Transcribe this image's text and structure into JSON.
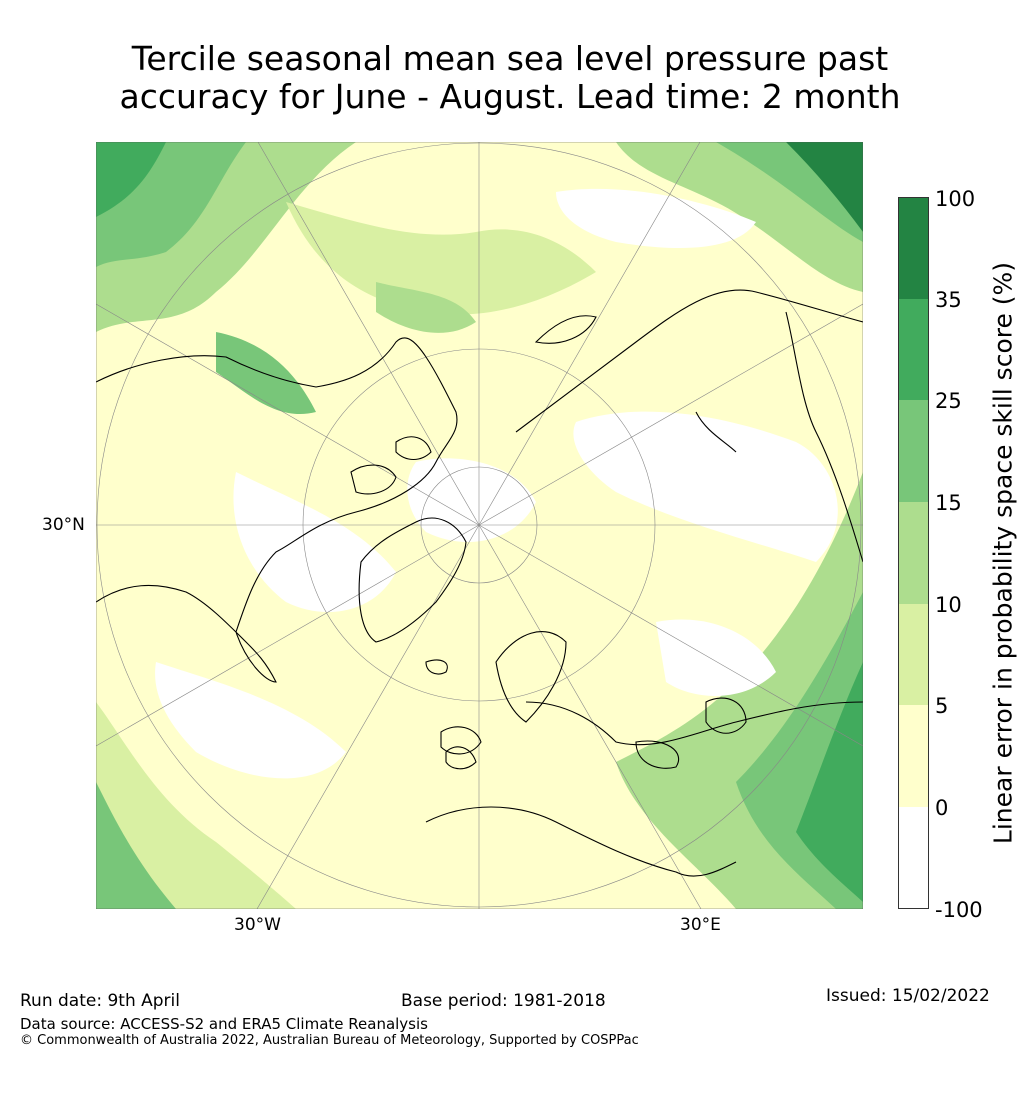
{
  "title": {
    "line1": "Tercile seasonal mean sea level pressure past",
    "line2": "accuracy for June - August. Lead time: 2 month"
  },
  "map": {
    "lat_label": "30°N",
    "lon_label_west": "30°W",
    "lon_label_east": "30°E",
    "projection": "north-polar-stereographic",
    "gridlines": true
  },
  "colorbar": {
    "label": "Linear error in probability space skill score (%)",
    "ticks": [
      "-100",
      "0",
      "5",
      "10",
      "15",
      "25",
      "35",
      "100"
    ],
    "colors": [
      "#ffffff",
      "#ffffcc",
      "#d9f0a3",
      "#addd8e",
      "#78c679",
      "#41ab5d",
      "#238443"
    ]
  },
  "footer": {
    "run_date": "Run date: 9th April",
    "base_period": "Base period: 1981-2018",
    "issued": "Issued: 15/02/2022",
    "data_source": "Data source: ACCESS-S2 and ERA5 Climate Reanalysis",
    "copyright": "© Commonwealth of Australia 2022, Australian Bureau of Meteorology, Supported by COSPPac"
  }
}
